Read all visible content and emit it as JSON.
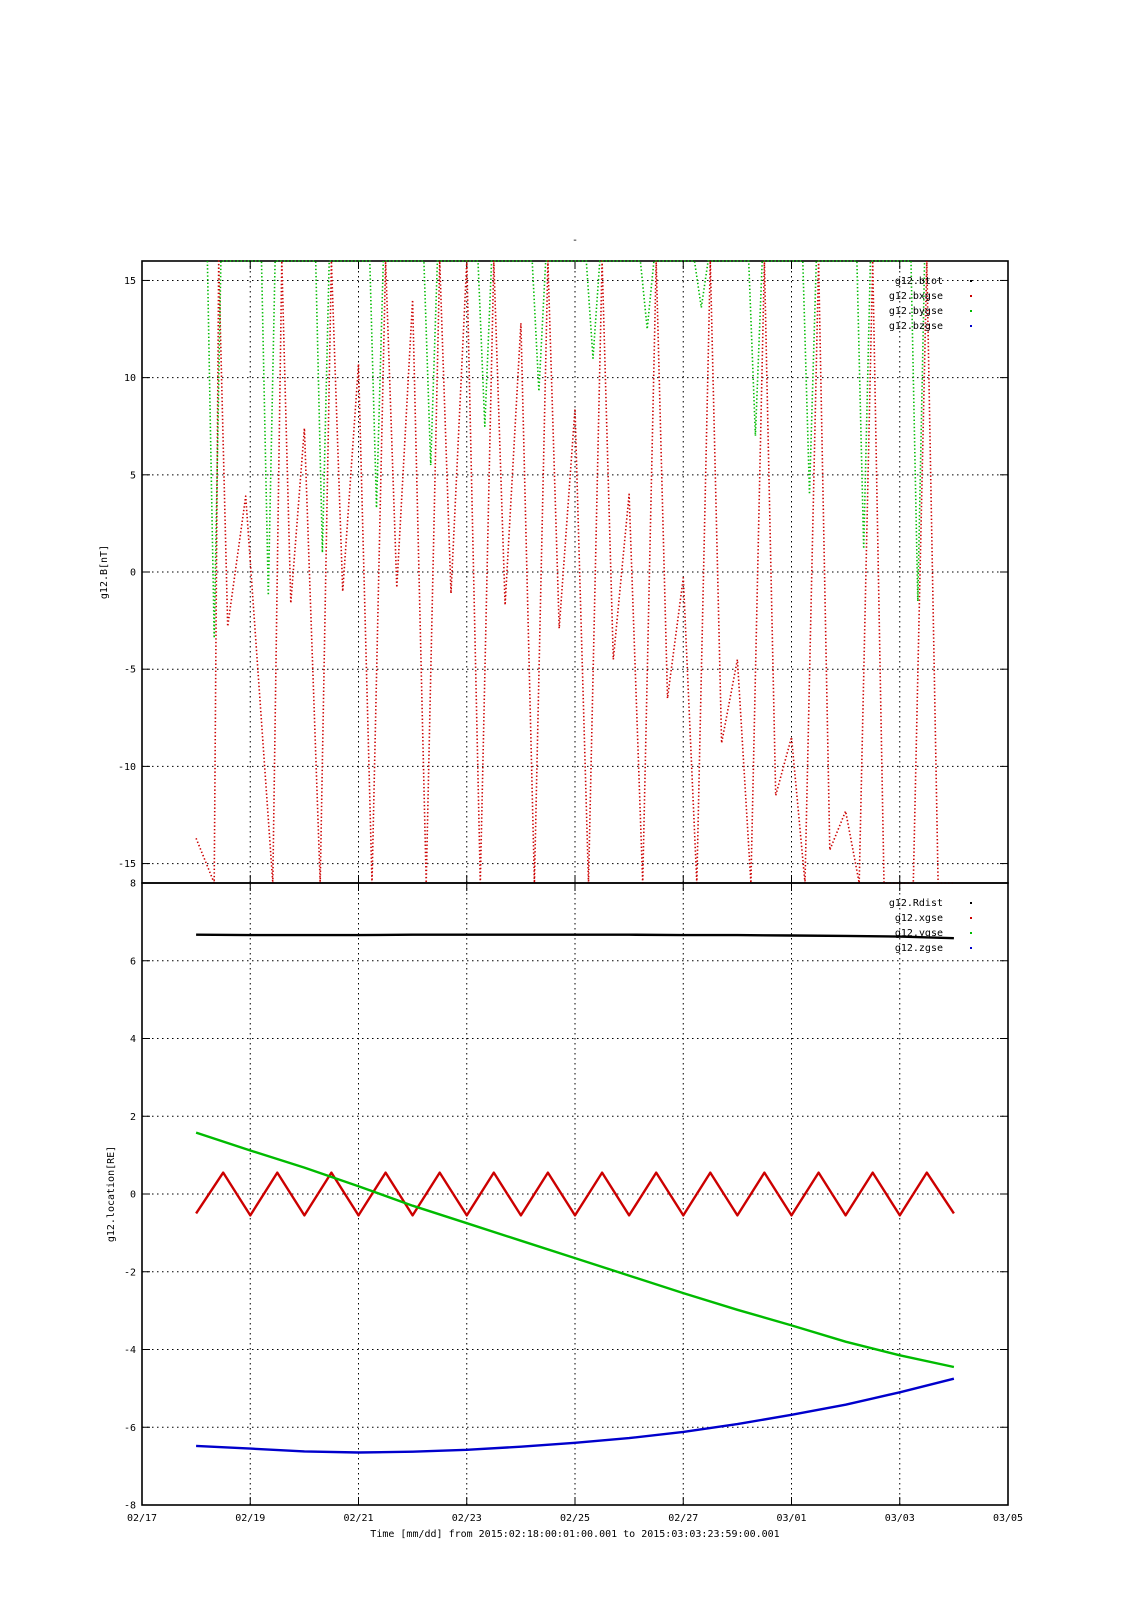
{
  "figure_title": "-",
  "footer_label": "Time [mm/dd]  from 2015:02:18:00:01:00.001  to  2015:03:03:23:59:00.001",
  "chart_data": [
    {
      "type": "line",
      "ylabel": "g12.B[nT]",
      "ylim": [
        -16,
        16
      ],
      "yticks": [
        -15,
        -10,
        -5,
        0,
        5,
        10,
        15
      ],
      "ytick_labels": [
        "-15",
        "-10",
        "-5",
        "0",
        "5",
        "10",
        "15"
      ],
      "xlim": [
        "02/17",
        "03/05"
      ],
      "grid": true,
      "legend_position": "top-right",
      "series": [
        {
          "name": "g12.btot",
          "color": "#000000",
          "style": "dots",
          "x": [],
          "y": []
        },
        {
          "name": "g12.bxgse",
          "color": "#cc0000",
          "style": "dots",
          "x": [
            "02/18 00:00",
            "02/18 08:00",
            "02/18 10:00",
            "02/18 14:00",
            "02/18 22:00",
            "02/19 10:00",
            "02/19 14:00",
            "02/19 18:00",
            "02/20 00:00",
            "02/20 07:00",
            "02/20 12:00",
            "02/20 17:00",
            "02/21 00:00",
            "02/21 06:00",
            "02/21 12:00",
            "02/21 17:00",
            "02/22 00:00",
            "02/22 06:00",
            "02/22 12:00",
            "02/22 17:00",
            "02/23 00:00",
            "02/23 06:00",
            "02/23 12:00",
            "02/23 17:00",
            "02/24 00:00",
            "02/24 06:00",
            "02/24 12:00",
            "02/24 17:00",
            "02/25 00:00",
            "02/25 06:00",
            "02/25 12:00",
            "02/25 17:00",
            "02/26 00:00",
            "02/26 06:00",
            "02/26 12:00",
            "02/26 17:00",
            "02/27 00:00",
            "02/27 06:00",
            "02/27 12:00",
            "02/27 17:00",
            "02/28 00:00",
            "02/28 06:00",
            "02/28 12:00",
            "02/28 17:00",
            "03/01 00:00",
            "03/01 06:00",
            "03/01 12:00",
            "03/01 17:00",
            "03/02 00:00",
            "03/02 06:00",
            "03/02 12:00",
            "03/02 17:00",
            "03/03 00:00",
            "03/03 06:00",
            "03/03 12:00",
            "03/03 17:00",
            "03/03 23:59"
          ],
          "y": [
            -13.7,
            -16.0,
            16.0,
            -2.8,
            3.9,
            -16.0,
            16.0,
            -1.6,
            7.4,
            -16.0,
            16.0,
            -1.0,
            10.7,
            -16.0,
            16.0,
            -0.8,
            14.0,
            -16.0,
            16.0,
            -1.1,
            16.0,
            -16.0,
            16.0,
            -1.7,
            12.8,
            -16.0,
            16.0,
            -2.9,
            8.4,
            -16.0,
            16.0,
            -4.5,
            4.0,
            -16.0,
            16.0,
            -6.5,
            -0.3,
            -16.0,
            16.0,
            -8.8,
            -4.5,
            -16.0,
            16.0,
            -11.5,
            -8.5,
            -16.0,
            16.0,
            -14.3,
            -12.3,
            -16.0,
            16.0,
            -16.0,
            -16.0,
            -16.0,
            16.0,
            -16.0,
            -16.0
          ]
        },
        {
          "name": "g12.bygse",
          "color": "#00bb00",
          "style": "dots",
          "x": [
            "02/18 05:00",
            "02/18 08:00",
            "02/18 11:00",
            "02/19 05:00",
            "02/19 08:00",
            "02/19 11:00",
            "02/20 05:00",
            "02/20 08:00",
            "02/20 11:00",
            "02/21 05:00",
            "02/21 08:00",
            "02/21 11:00",
            "02/22 05:00",
            "02/22 08:00",
            "02/22 11:00",
            "02/23 05:00",
            "02/23 08:00",
            "02/23 11:00",
            "02/24 05:00",
            "02/24 08:00",
            "02/24 11:00",
            "02/25 05:00",
            "02/25 08:00",
            "02/25 11:00",
            "02/26 05:00",
            "02/26 08:00",
            "02/26 11:00",
            "02/27 05:00",
            "02/27 08:00",
            "02/27 11:00",
            "02/28 05:00",
            "02/28 08:00",
            "02/28 11:00",
            "03/01 05:00",
            "03/01 08:00",
            "03/01 11:00",
            "03/02 05:00",
            "03/02 08:00",
            "03/02 11:00",
            "03/03 05:00",
            "03/03 08:00",
            "03/03 11:00"
          ],
          "y": [
            16.0,
            -3.4,
            16.0,
            16.0,
            -1.2,
            16.0,
            16.0,
            1.0,
            16.0,
            16.0,
            3.3,
            16.0,
            16.0,
            5.5,
            16.0,
            16.0,
            7.5,
            16.0,
            16.0,
            9.3,
            16.0,
            16.0,
            11.0,
            16.0,
            16.0,
            12.5,
            16.0,
            16.0,
            13.6,
            16.0,
            16.0,
            7.0,
            16.0,
            16.0,
            4.0,
            16.0,
            16.0,
            1.2,
            16.0,
            16.0,
            -1.5,
            16.0
          ]
        },
        {
          "name": "g12.bzgse",
          "color": "#0000cc",
          "style": "dots",
          "x": [],
          "y": []
        }
      ]
    },
    {
      "type": "line",
      "ylabel": "g12.location[RE]",
      "xlabel": "Time [mm/dd]  from 2015:02:18:00:01:00.001  to  2015:03:03:23:59:00.001",
      "ylim": [
        -8,
        8
      ],
      "yticks": [
        -8,
        -6,
        -4,
        -2,
        0,
        2,
        4,
        6,
        8
      ],
      "ytick_labels": [
        "-8",
        "-6",
        "-4",
        "-2",
        "0",
        "2",
        "4",
        "6",
        "8"
      ],
      "xlim": [
        "02/17",
        "03/05"
      ],
      "xticks": [
        "02/17",
        "02/19",
        "02/21",
        "02/23",
        "02/25",
        "02/27",
        "03/01",
        "03/03",
        "03/05"
      ],
      "grid": true,
      "legend_position": "top-right",
      "series": [
        {
          "name": "g12.Rdist",
          "color": "#000000",
          "x": [
            "02/18",
            "02/19",
            "02/20",
            "02/21",
            "02/22",
            "02/23",
            "02/24",
            "02/25",
            "02/26",
            "02/27",
            "02/28",
            "03/01",
            "03/02",
            "03/03",
            "03/04"
          ],
          "y": [
            6.67,
            6.66,
            6.66,
            6.66,
            6.67,
            6.67,
            6.67,
            6.67,
            6.67,
            6.66,
            6.66,
            6.65,
            6.64,
            6.62,
            6.58
          ]
        },
        {
          "name": "g12.xgse",
          "color": "#cc0000",
          "x": [
            "02/18 00:00",
            "02/18 12:00",
            "02/19 00:00",
            "02/19 12:00",
            "02/20 00:00",
            "02/20 12:00",
            "02/21 00:00",
            "02/21 12:00",
            "02/22 00:00",
            "02/22 12:00",
            "02/23 00:00",
            "02/23 12:00",
            "02/24 00:00",
            "02/24 12:00",
            "02/25 00:00",
            "02/25 12:00",
            "02/26 00:00",
            "02/26 12:00",
            "02/27 00:00",
            "02/27 12:00",
            "02/28 00:00",
            "02/28 12:00",
            "03/01 00:00",
            "03/01 12:00",
            "03/02 00:00",
            "03/02 12:00",
            "03/03 00:00",
            "03/03 12:00",
            "03/04 00:00"
          ],
          "y": [
            -0.5,
            0.55,
            -0.55,
            0.55,
            -0.55,
            0.55,
            -0.55,
            0.55,
            -0.55,
            0.55,
            -0.55,
            0.55,
            -0.55,
            0.55,
            -0.55,
            0.55,
            -0.55,
            0.55,
            -0.55,
            0.55,
            -0.55,
            0.55,
            -0.55,
            0.55,
            -0.55,
            0.55,
            -0.55,
            0.55,
            -0.5
          ]
        },
        {
          "name": "g12.ygse",
          "color": "#00bb00",
          "x": [
            "02/18",
            "02/19",
            "02/20",
            "02/21",
            "02/22",
            "02/23",
            "02/24",
            "02/25",
            "02/26",
            "02/27",
            "02/28",
            "03/01",
            "03/02",
            "03/03",
            "03/04"
          ],
          "y": [
            1.58,
            1.12,
            0.68,
            0.2,
            -0.3,
            -0.75,
            -1.2,
            -1.65,
            -2.1,
            -2.55,
            -2.98,
            -3.38,
            -3.8,
            -4.15,
            -4.45
          ]
        },
        {
          "name": "g12.zgse",
          "color": "#0000cc",
          "x": [
            "02/18",
            "02/19",
            "02/20",
            "02/21",
            "02/22",
            "02/23",
            "02/24",
            "02/25",
            "02/26",
            "02/27",
            "02/28",
            "03/01",
            "03/02",
            "03/03",
            "03/04"
          ],
          "y": [
            -6.48,
            -6.55,
            -6.62,
            -6.65,
            -6.63,
            -6.58,
            -6.5,
            -6.4,
            -6.28,
            -6.12,
            -5.92,
            -5.68,
            -5.42,
            -5.1,
            -4.75
          ]
        }
      ]
    }
  ]
}
